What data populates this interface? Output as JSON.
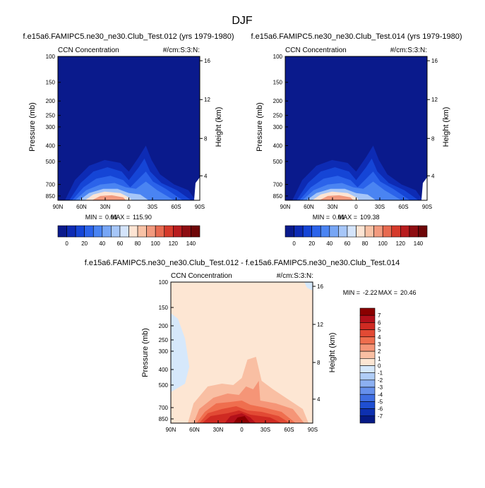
{
  "figure": {
    "title": "DJF"
  },
  "chart_data": [
    {
      "type": "heatmap",
      "title": "f.e15a6.FAMIPC5.ne30_ne30.Club_Test.012 (yrs 1979-1980)",
      "left_label": "CCN Concentration",
      "right_label": "#/cm:S:3:N:",
      "xlabel": "",
      "ylabel": "Pressure (mb)",
      "y2label": "Height (km)",
      "x_ticks": [
        "90N",
        "60N",
        "30N",
        "0",
        "30S",
        "60S",
        "90S"
      ],
      "y_ticks": [
        "100",
        "150",
        "200",
        "250",
        "300",
        "400",
        "500",
        "700",
        "850"
      ],
      "y2_ticks": [
        "16",
        "12",
        "8",
        "4"
      ],
      "stats": {
        "min_label": "MIN =",
        "min": "0.01",
        "max_label": "MAX =",
        "max": "115.90"
      },
      "colorbar_labels": [
        "0",
        "20",
        "40",
        "60",
        "80",
        "100",
        "120",
        "140"
      ],
      "colorbar_colors": [
        "#0a1a8c",
        "#0d2bb4",
        "#1545d6",
        "#2b63ea",
        "#4a84f2",
        "#77a6f5",
        "#a6c6f8",
        "#d4e4fb",
        "#fde4d3",
        "#f8c2a6",
        "#f29a7e",
        "#e76a50",
        "#d53a2b",
        "#b81c1e",
        "#8e0d12",
        "#6e0608"
      ],
      "max_value": 115.9
    },
    {
      "type": "heatmap",
      "title": "f.e15a6.FAMIPC5.ne30_ne30.Club_Test.014 (yrs 1979-1980)",
      "left_label": "CCN Concentration",
      "right_label": "#/cm:S:3:N:",
      "xlabel": "",
      "ylabel": "Pressure (mb)",
      "y2label": "Height (km)",
      "x_ticks": [
        "90N",
        "60N",
        "30N",
        "0",
        "30S",
        "60S",
        "90S"
      ],
      "y_ticks": [
        "100",
        "150",
        "200",
        "250",
        "300",
        "400",
        "500",
        "700",
        "850"
      ],
      "y2_ticks": [
        "16",
        "12",
        "8",
        "4"
      ],
      "stats": {
        "min_label": "MIN =",
        "min": "0.01",
        "max_label": "MAX =",
        "max": "109.38"
      },
      "colorbar_labels": [
        "0",
        "20",
        "40",
        "60",
        "80",
        "100",
        "120",
        "140"
      ],
      "colorbar_colors": [
        "#0a1a8c",
        "#0d2bb4",
        "#1545d6",
        "#2b63ea",
        "#4a84f2",
        "#77a6f5",
        "#a6c6f8",
        "#d4e4fb",
        "#fde4d3",
        "#f8c2a6",
        "#f29a7e",
        "#e76a50",
        "#d53a2b",
        "#b81c1e",
        "#8e0d12",
        "#6e0608"
      ],
      "max_value": 109.38
    },
    {
      "type": "heatmap",
      "title": "f.e15a6.FAMIPC5.ne30_ne30.Club_Test.012 - f.e15a6.FAMIPC5.ne30_ne30.Club_Test.014",
      "left_label": "CCN Concentration",
      "right_label": "#/cm:S:3:N:",
      "xlabel": "",
      "ylabel": "Pressure (mb)",
      "y2label": "Height (km)",
      "x_ticks": [
        "90N",
        "60N",
        "30N",
        "0",
        "30S",
        "60S",
        "90S"
      ],
      "y_ticks": [
        "100",
        "150",
        "200",
        "250",
        "300",
        "400",
        "500",
        "700",
        "850"
      ],
      "y2_ticks": [
        "16",
        "12",
        "8",
        "4"
      ],
      "stats": {
        "min_label": "MIN =",
        "min": "-2.22",
        "max_label": "MAX =",
        "max": "20.46"
      },
      "colorbar_labels": [
        "7",
        "6",
        "5",
        "4",
        "3",
        "2",
        "1",
        "0",
        "-1",
        "-2",
        "-3",
        "-4",
        "-5",
        "-6",
        "-7"
      ],
      "colorbar_colors": [
        "#8b0000",
        "#b3101a",
        "#cf2a22",
        "#e24a34",
        "#ef6e4e",
        "#f59577",
        "#f9bfa3",
        "#fde6d3",
        "#d6e8fb",
        "#b0cdf7",
        "#8cb0f2",
        "#6690ec",
        "#3f6ee2",
        "#1f4fd2",
        "#0e30b0",
        "#061a85"
      ],
      "max_value": 20.46
    }
  ]
}
